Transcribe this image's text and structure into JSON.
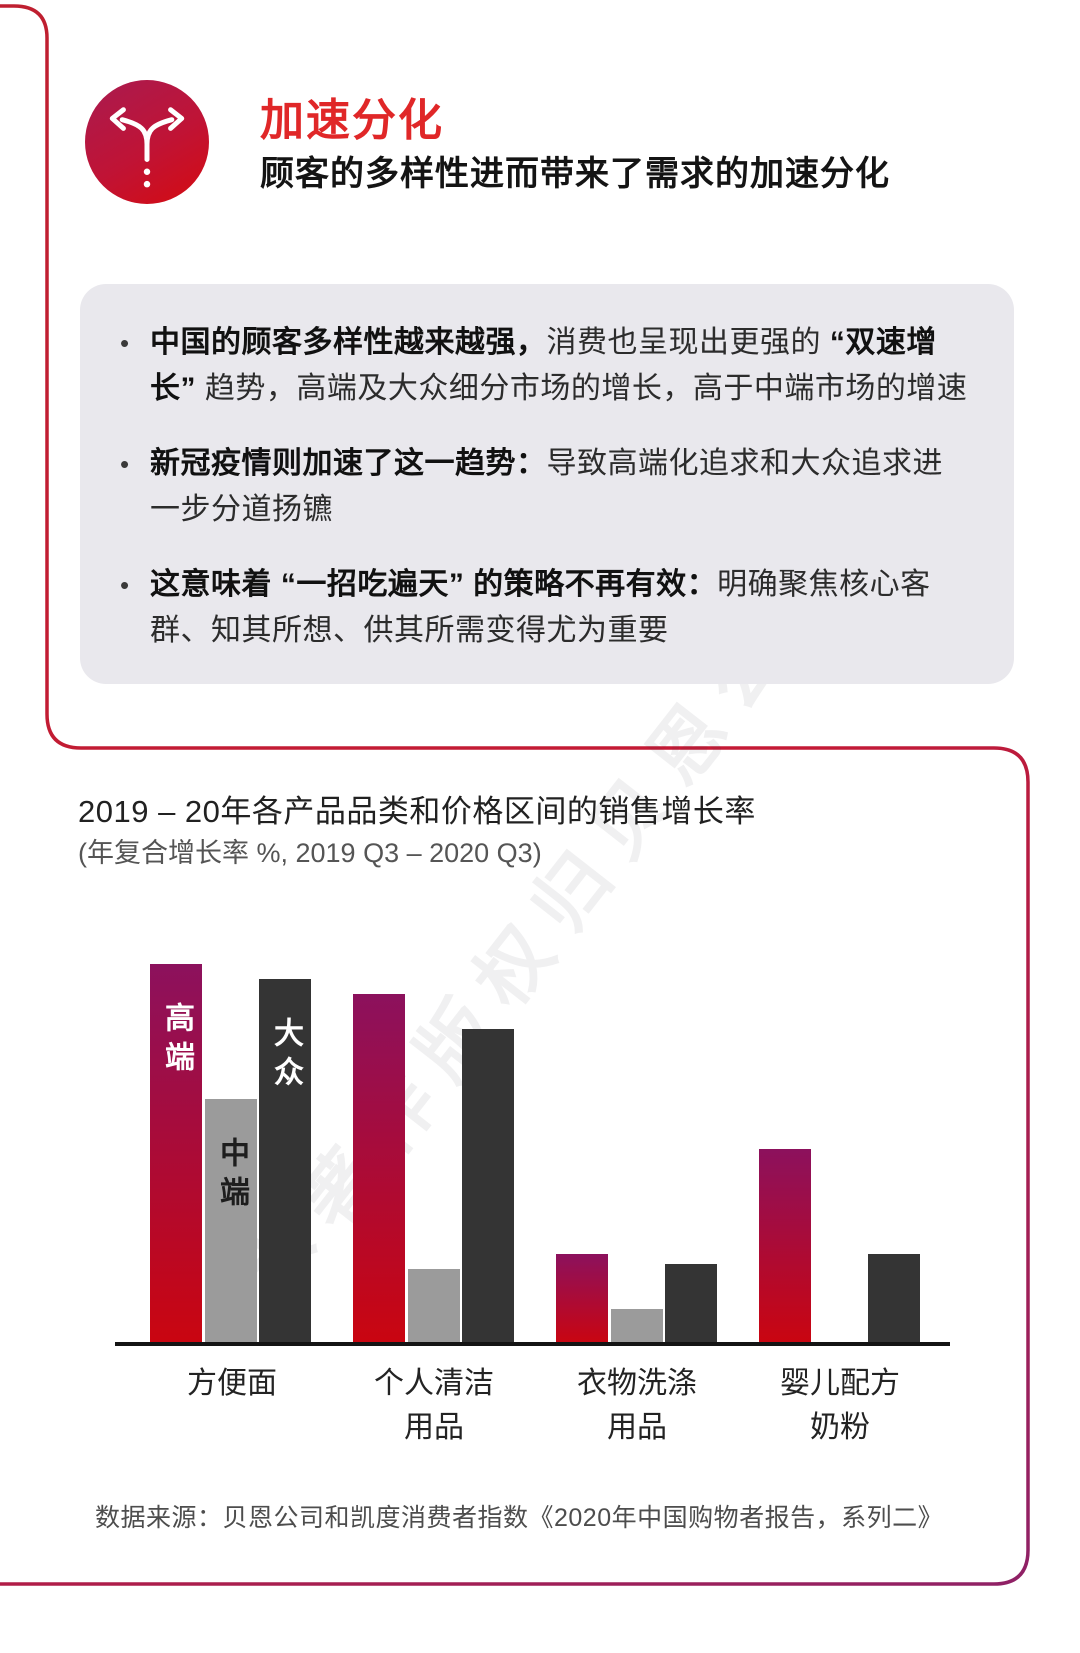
{
  "page": {
    "watermark": "本著作版权归贝恩公司所有"
  },
  "header": {
    "title": "加速分化",
    "subtitle": "顾客的多样性进而带来了需求的加速分化",
    "icon": "diverging-arrows-icon",
    "title_color": "#e02728"
  },
  "bullets": [
    {
      "segments": [
        {
          "t": "中国的顾客多样性越来越强，",
          "b": true
        },
        {
          "t": "消费也呈现出更强的 ",
          "b": false
        },
        {
          "t": "“双速增长”",
          "b": true
        },
        {
          "t": " 趋势，高端及大众细分市场的增长，高于中端市场的增速",
          "b": false
        }
      ]
    },
    {
      "segments": [
        {
          "t": "新冠疫情则加速了这一趋势：",
          "b": true
        },
        {
          "t": "导致高端化追求和大众追求进一步分道扬镳",
          "b": false
        }
      ]
    },
    {
      "segments": [
        {
          "t": "这意味着 “一招吃遍天” 的策略不再有效：",
          "b": true
        },
        {
          "t": "明确聚焦核心客群、知其所想、供其所需变得尤为重要",
          "b": false
        }
      ]
    }
  ],
  "chart_data": {
    "type": "bar",
    "title": "2019 – 20年各产品品类和价格区间的销售增长率",
    "subtitle": "(年复合增长率 %, 2019 Q3 – 2020 Q3)",
    "categories": [
      "方便面",
      "个人清洁\n用品",
      "衣物洗涤\n用品",
      "婴儿配方\n奶粉"
    ],
    "series": [
      {
        "name": "高端",
        "gradient_top": "#8c115d",
        "gradient_bottom": "#ca0510",
        "label_color": "#ffffff",
        "values": [
          38,
          35,
          9,
          19.5
        ]
      },
      {
        "name": "中端",
        "color": "#9b9b9b",
        "label_color": "#1d1d1d",
        "values": [
          24.5,
          7.5,
          3.5,
          null
        ]
      },
      {
        "name": "大众",
        "color": "#343434",
        "label_color": "#ffffff",
        "values": [
          36.5,
          31.5,
          8,
          9
        ]
      }
    ],
    "ylim": [
      0,
      40
    ],
    "grid": false,
    "legend_position": "on-first-group-bars",
    "value_labels_shown": false,
    "xlabel": "",
    "ylabel": "",
    "source": "数据来源：贝恩公司和凯度消费者指数《2020年中国购物者报告，系列二》"
  }
}
